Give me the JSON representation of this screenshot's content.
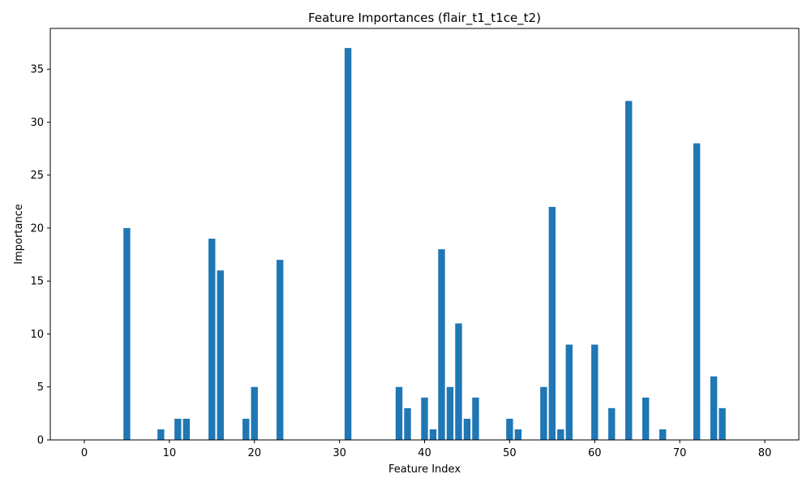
{
  "chart_data": {
    "type": "bar",
    "title": "Feature Importances (flair_t1_t1ce_t2)",
    "xlabel": "Feature Index",
    "ylabel": "Importance",
    "xlim": [
      -4,
      84
    ],
    "ylim": [
      0,
      38.85
    ],
    "xticks": [
      0,
      10,
      20,
      30,
      40,
      50,
      60,
      70,
      80
    ],
    "yticks": [
      0,
      5,
      10,
      15,
      20,
      25,
      30,
      35
    ],
    "bar_color": "#1f77b4",
    "grid": false,
    "x": [
      5,
      9,
      11,
      12,
      15,
      16,
      19,
      20,
      23,
      31,
      37,
      38,
      40,
      41,
      42,
      43,
      44,
      45,
      46,
      50,
      51,
      54,
      55,
      56,
      57,
      60,
      62,
      64,
      66,
      68,
      72,
      74,
      75
    ],
    "values": [
      20,
      1,
      2,
      2,
      19,
      16,
      2,
      5,
      17,
      37,
      5,
      3,
      4,
      1,
      18,
      5,
      11,
      2,
      4,
      2,
      1,
      5,
      22,
      1,
      9,
      9,
      3,
      32,
      4,
      1,
      28,
      6,
      3
    ]
  }
}
